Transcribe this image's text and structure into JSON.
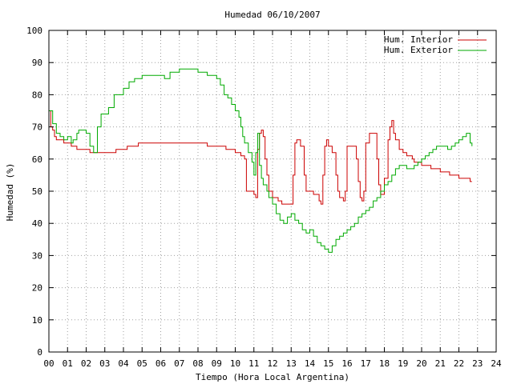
{
  "chart_data": {
    "type": "line",
    "title": "Humedad 06/10/2007",
    "xlabel": "Tiempo (Hora Local Argentina)",
    "ylabel": "Humedad (%)",
    "xlim": [
      0,
      24
    ],
    "ylim": [
      0,
      100
    ],
    "x_ticks": [
      "00",
      "01",
      "02",
      "03",
      "04",
      "05",
      "06",
      "07",
      "08",
      "09",
      "10",
      "11",
      "12",
      "13",
      "14",
      "15",
      "16",
      "17",
      "18",
      "19",
      "20",
      "21",
      "22",
      "23",
      "24"
    ],
    "y_ticks": [
      0,
      10,
      20,
      30,
      40,
      50,
      60,
      70,
      80,
      90,
      100
    ],
    "grid": true,
    "legend_position": "top-right",
    "series": [
      {
        "name": "Hum. Interior",
        "color": "#cc0000",
        "points": [
          [
            0,
            75
          ],
          [
            0.1,
            70
          ],
          [
            0.2,
            69
          ],
          [
            0.3,
            67
          ],
          [
            0.4,
            66
          ],
          [
            0.6,
            66
          ],
          [
            0.8,
            65
          ],
          [
            1,
            65
          ],
          [
            1.2,
            64
          ],
          [
            1.5,
            63
          ],
          [
            2,
            63
          ],
          [
            2.2,
            62
          ],
          [
            2.6,
            62
          ],
          [
            3,
            62
          ],
          [
            3.4,
            62
          ],
          [
            3.6,
            63
          ],
          [
            4,
            63
          ],
          [
            4.2,
            64
          ],
          [
            4.5,
            64
          ],
          [
            4.8,
            65
          ],
          [
            5.5,
            65
          ],
          [
            6,
            65
          ],
          [
            6.5,
            65
          ],
          [
            7,
            65
          ],
          [
            7.5,
            65
          ],
          [
            8,
            65
          ],
          [
            8.5,
            64
          ],
          [
            9,
            64
          ],
          [
            9.5,
            63
          ],
          [
            10,
            62
          ],
          [
            10.3,
            61
          ],
          [
            10.5,
            60
          ],
          [
            10.6,
            50
          ],
          [
            10.8,
            50
          ],
          [
            11,
            49
          ],
          [
            11.1,
            48
          ],
          [
            11.2,
            63
          ],
          [
            11.3,
            68
          ],
          [
            11.4,
            69
          ],
          [
            11.5,
            67
          ],
          [
            11.6,
            60
          ],
          [
            11.7,
            55
          ],
          [
            11.8,
            50
          ],
          [
            12,
            48
          ],
          [
            12.3,
            47
          ],
          [
            12.5,
            46
          ],
          [
            13,
            46
          ],
          [
            13.1,
            55
          ],
          [
            13.2,
            65
          ],
          [
            13.3,
            66
          ],
          [
            13.5,
            64
          ],
          [
            13.7,
            55
          ],
          [
            13.8,
            50
          ],
          [
            14,
            50
          ],
          [
            14.2,
            49
          ],
          [
            14.5,
            47
          ],
          [
            14.6,
            46
          ],
          [
            14.7,
            55
          ],
          [
            14.8,
            64
          ],
          [
            14.9,
            66
          ],
          [
            15,
            64
          ],
          [
            15.2,
            62
          ],
          [
            15.4,
            55
          ],
          [
            15.5,
            50
          ],
          [
            15.6,
            48
          ],
          [
            15.8,
            47
          ],
          [
            15.9,
            50
          ],
          [
            16,
            64
          ],
          [
            16.2,
            64
          ],
          [
            16.4,
            64
          ],
          [
            16.5,
            60
          ],
          [
            16.6,
            53
          ],
          [
            16.7,
            48
          ],
          [
            16.8,
            47
          ],
          [
            16.9,
            50
          ],
          [
            17,
            65
          ],
          [
            17.2,
            68
          ],
          [
            17.5,
            68
          ],
          [
            17.6,
            60
          ],
          [
            17.7,
            52
          ],
          [
            17.8,
            49
          ],
          [
            18,
            54
          ],
          [
            18.2,
            66
          ],
          [
            18.3,
            70
          ],
          [
            18.4,
            72
          ],
          [
            18.5,
            68
          ],
          [
            18.6,
            66
          ],
          [
            18.8,
            63
          ],
          [
            19,
            62
          ],
          [
            19.2,
            61
          ],
          [
            19.5,
            60
          ],
          [
            19.6,
            59
          ],
          [
            20,
            58
          ],
          [
            20.5,
            57
          ],
          [
            21,
            56
          ],
          [
            21.5,
            55
          ],
          [
            22,
            54
          ],
          [
            22.5,
            54
          ],
          [
            22.6,
            53
          ],
          [
            22.7,
            53
          ]
        ]
      },
      {
        "name": "Hum. Exterior",
        "color": "#00aa00",
        "points": [
          [
            0,
            75
          ],
          [
            0.2,
            71
          ],
          [
            0.4,
            68
          ],
          [
            0.6,
            67
          ],
          [
            0.8,
            66
          ],
          [
            1,
            67
          ],
          [
            1.2,
            65
          ],
          [
            1.3,
            66
          ],
          [
            1.5,
            68
          ],
          [
            1.6,
            69
          ],
          [
            2,
            68
          ],
          [
            2.1,
            68
          ],
          [
            2.2,
            64
          ],
          [
            2.4,
            62
          ],
          [
            2.6,
            70
          ],
          [
            2.8,
            74
          ],
          [
            3,
            74
          ],
          [
            3.2,
            76
          ],
          [
            3.5,
            80
          ],
          [
            3.8,
            80
          ],
          [
            4,
            82
          ],
          [
            4.3,
            84
          ],
          [
            4.6,
            85
          ],
          [
            5,
            86
          ],
          [
            5.5,
            86
          ],
          [
            6,
            86
          ],
          [
            6.2,
            85
          ],
          [
            6.5,
            87
          ],
          [
            7,
            88
          ],
          [
            7.5,
            88
          ],
          [
            8,
            87
          ],
          [
            8.5,
            86
          ],
          [
            9,
            85
          ],
          [
            9.2,
            83
          ],
          [
            9.4,
            80
          ],
          [
            9.6,
            79
          ],
          [
            9.8,
            77
          ],
          [
            10,
            75
          ],
          [
            10.2,
            73
          ],
          [
            10.3,
            70
          ],
          [
            10.4,
            67
          ],
          [
            10.5,
            65
          ],
          [
            10.7,
            62
          ],
          [
            10.9,
            59
          ],
          [
            11,
            55
          ],
          [
            11.1,
            62
          ],
          [
            11.2,
            68
          ],
          [
            11.3,
            58
          ],
          [
            11.4,
            54
          ],
          [
            11.5,
            52
          ],
          [
            11.7,
            50
          ],
          [
            11.8,
            48
          ],
          [
            12,
            46
          ],
          [
            12.2,
            43
          ],
          [
            12.4,
            41
          ],
          [
            12.6,
            40
          ],
          [
            12.8,
            42
          ],
          [
            13,
            43
          ],
          [
            13.2,
            41
          ],
          [
            13.4,
            40
          ],
          [
            13.6,
            38
          ],
          [
            13.8,
            37
          ],
          [
            14,
            38
          ],
          [
            14.2,
            36
          ],
          [
            14.4,
            34
          ],
          [
            14.6,
            33
          ],
          [
            14.8,
            32
          ],
          [
            15,
            31
          ],
          [
            15.2,
            33
          ],
          [
            15.4,
            35
          ],
          [
            15.6,
            36
          ],
          [
            15.8,
            37
          ],
          [
            16,
            38
          ],
          [
            16.2,
            39
          ],
          [
            16.4,
            40
          ],
          [
            16.6,
            42
          ],
          [
            16.8,
            43
          ],
          [
            17,
            44
          ],
          [
            17.2,
            45
          ],
          [
            17.4,
            47
          ],
          [
            17.6,
            48
          ],
          [
            17.8,
            50
          ],
          [
            18,
            52
          ],
          [
            18.2,
            53
          ],
          [
            18.4,
            55
          ],
          [
            18.6,
            57
          ],
          [
            18.8,
            58
          ],
          [
            19,
            58
          ],
          [
            19.2,
            57
          ],
          [
            19.4,
            57
          ],
          [
            19.6,
            58
          ],
          [
            19.8,
            59
          ],
          [
            20,
            60
          ],
          [
            20.2,
            61
          ],
          [
            20.4,
            62
          ],
          [
            20.6,
            63
          ],
          [
            20.8,
            64
          ],
          [
            21,
            64
          ],
          [
            21.2,
            64
          ],
          [
            21.4,
            63
          ],
          [
            21.6,
            64
          ],
          [
            21.8,
            65
          ],
          [
            22,
            66
          ],
          [
            22.2,
            67
          ],
          [
            22.4,
            68
          ],
          [
            22.5,
            68
          ],
          [
            22.6,
            65
          ],
          [
            22.7,
            64
          ]
        ]
      }
    ]
  }
}
